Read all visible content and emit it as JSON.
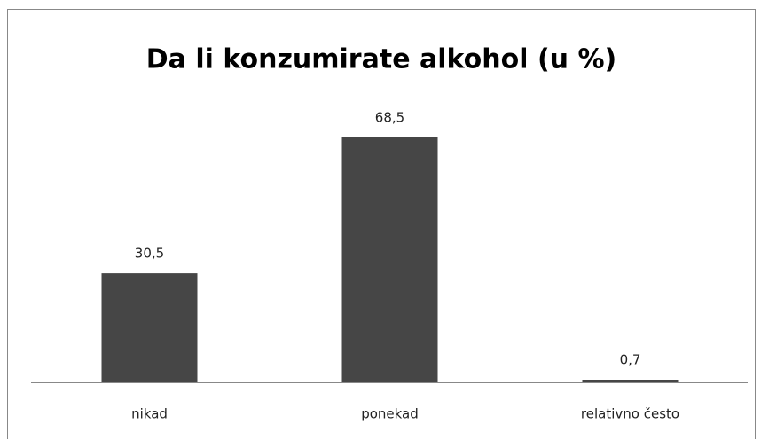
{
  "chart_data": {
    "type": "bar",
    "title": "Da li konzumirate alkohol (u %)",
    "categories": [
      "nikad",
      "ponekad",
      "relativno često"
    ],
    "values": [
      30.5,
      68.5,
      0.7
    ],
    "value_labels": [
      "30,5",
      "68,5",
      "0,7"
    ],
    "color": "#464646"
  }
}
